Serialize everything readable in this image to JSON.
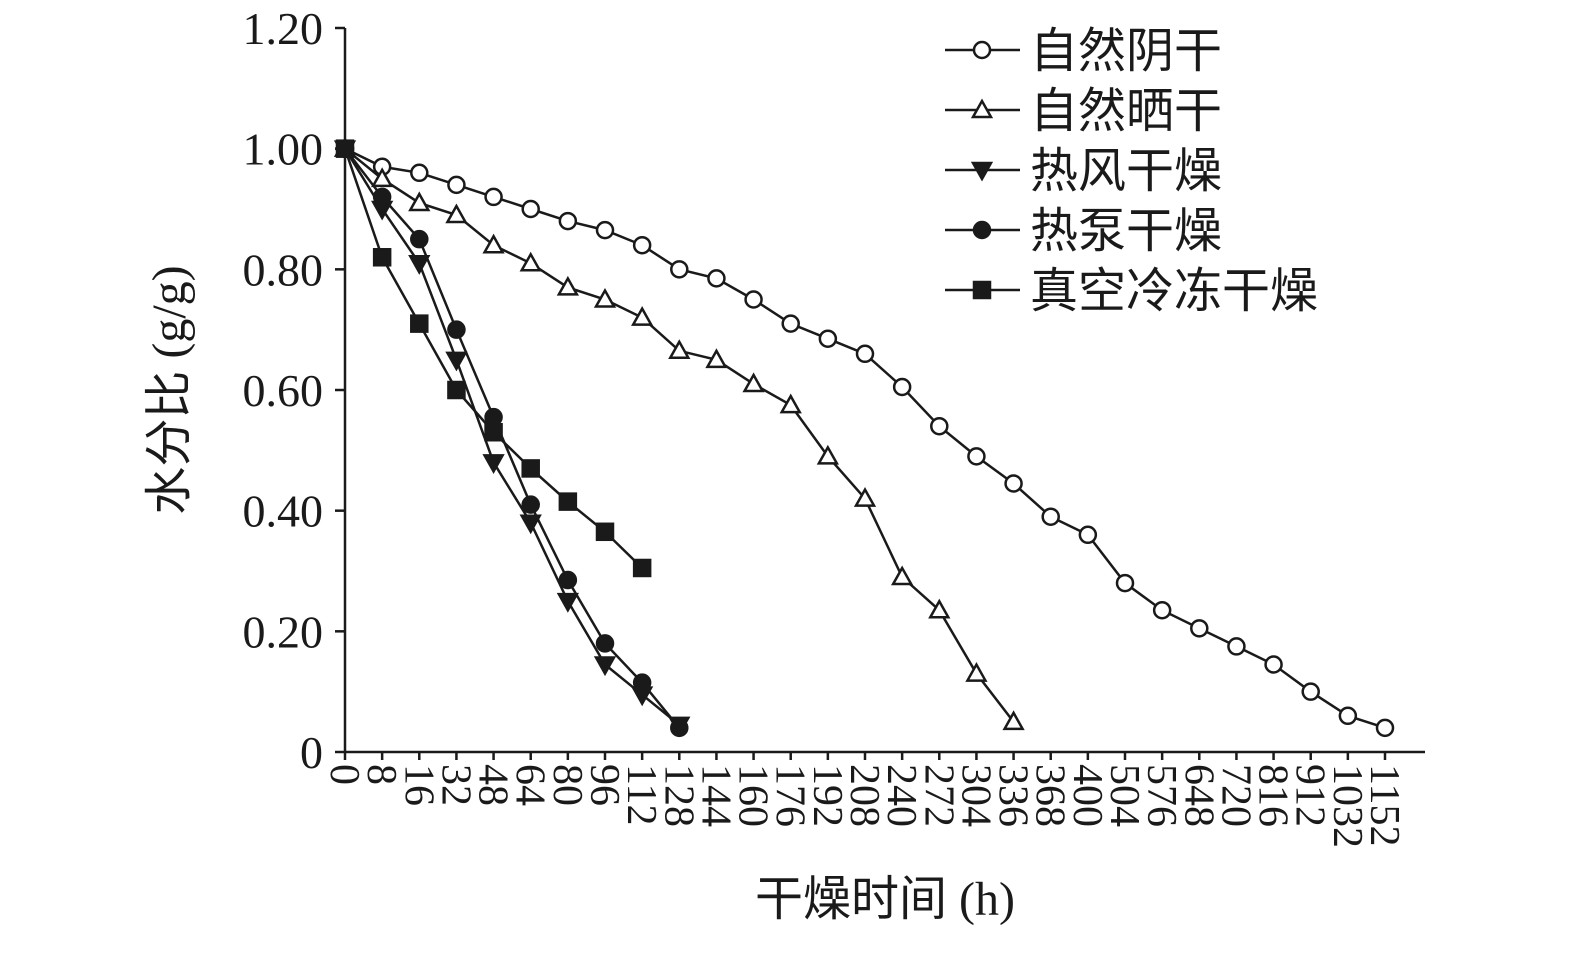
{
  "chart_data": {
    "type": "line",
    "xlabel": "干燥时间 (h)",
    "ylabel": "水分比 (g/g)",
    "categories": [
      "0",
      "8",
      "16",
      "32",
      "48",
      "64",
      "80",
      "96",
      "112",
      "128",
      "144",
      "160",
      "176",
      "192",
      "208",
      "240",
      "272",
      "304",
      "336",
      "368",
      "400",
      "504",
      "576",
      "648",
      "720",
      "816",
      "912",
      "1032",
      "1152"
    ],
    "series": [
      {
        "name": "自然阴干",
        "color": "#1a1a1a",
        "marker": "circle-open",
        "values": [
          1.0,
          0.97,
          0.96,
          0.94,
          0.92,
          0.9,
          0.88,
          0.865,
          0.84,
          0.8,
          0.785,
          0.75,
          0.71,
          0.685,
          0.66,
          0.605,
          0.54,
          0.49,
          0.445,
          0.39,
          0.36,
          0.28,
          0.235,
          0.205,
          0.175,
          0.145,
          0.1,
          0.06,
          0.04
        ]
      },
      {
        "name": "自然晒干",
        "color": "#1a1a1a",
        "marker": "triangle-open",
        "values": [
          1.0,
          0.95,
          0.91,
          0.89,
          0.84,
          0.81,
          0.77,
          0.75,
          0.72,
          0.665,
          0.65,
          0.61,
          0.575,
          0.49,
          0.42,
          0.29,
          0.235,
          0.13,
          0.05,
          null,
          null,
          null,
          null,
          null,
          null,
          null,
          null,
          null,
          null
        ]
      },
      {
        "name": "热风干燥",
        "color": "#1a1a1a",
        "marker": "triangle-down-filled",
        "values": [
          1.0,
          0.9,
          0.81,
          0.65,
          0.48,
          0.38,
          0.25,
          0.145,
          0.095,
          0.045,
          null,
          null,
          null,
          null,
          null,
          null,
          null,
          null,
          null,
          null,
          null,
          null,
          null,
          null,
          null,
          null,
          null,
          null,
          null
        ]
      },
      {
        "name": "热泵干燥",
        "color": "#1a1a1a",
        "marker": "circle-filled",
        "values": [
          1.0,
          0.92,
          0.85,
          0.7,
          0.555,
          0.41,
          0.285,
          0.18,
          0.115,
          0.04,
          null,
          null,
          null,
          null,
          null,
          null,
          null,
          null,
          null,
          null,
          null,
          null,
          null,
          null,
          null,
          null,
          null,
          null,
          null
        ]
      },
      {
        "name": "真空冷冻干燥",
        "color": "#1a1a1a",
        "marker": "square-filled",
        "values": [
          1.0,
          0.82,
          0.71,
          0.6,
          0.53,
          0.47,
          0.415,
          0.365,
          0.305,
          null,
          null,
          null,
          null,
          null,
          null,
          null,
          null,
          null,
          null,
          null,
          null,
          null,
          null,
          null,
          null,
          null,
          null,
          null,
          null
        ]
      }
    ],
    "ylim": [
      0,
      1.2
    ],
    "yticks": [
      0,
      {
        "value": 0.2,
        "label": "0.20"
      },
      {
        "value": 0.4,
        "label": "0.40"
      },
      {
        "value": 0.6,
        "label": "0.60"
      },
      {
        "value": 0.8,
        "label": "0.80"
      },
      {
        "value": 1.0,
        "label": "1.00"
      },
      {
        "value": 1.2,
        "label": "1.20"
      }
    ],
    "legend": "top-right"
  }
}
